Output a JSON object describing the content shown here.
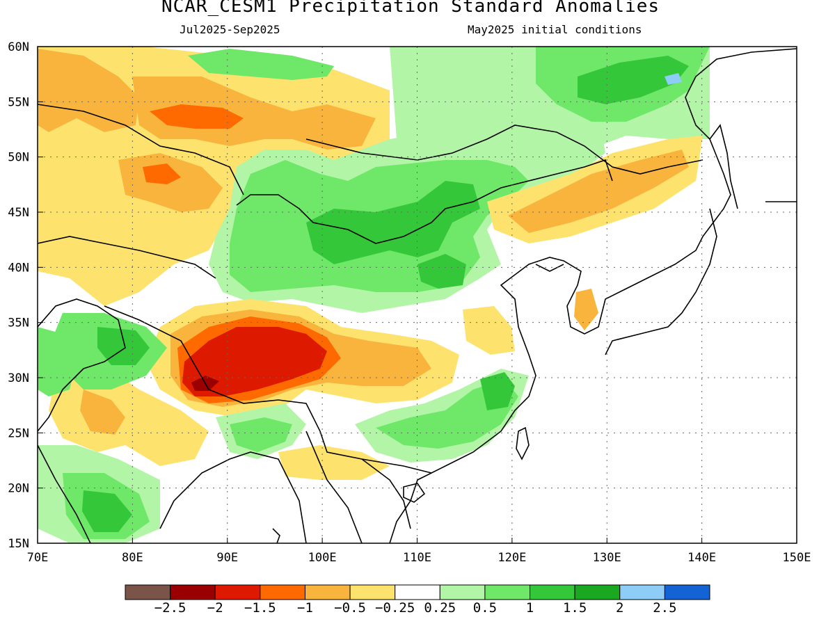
{
  "title": "NCAR_CESM1 Precipitation Standard Anomalies",
  "period": "Jul2025-Sep2025",
  "initial_conditions": "May2025 initial conditions",
  "axes": {
    "lat_labels": [
      "15N",
      "20N",
      "25N",
      "30N",
      "35N",
      "40N",
      "45N",
      "50N",
      "55N",
      "60N"
    ],
    "lat_values": [
      15,
      20,
      25,
      30,
      35,
      40,
      45,
      50,
      55,
      60
    ],
    "lon_labels": [
      "70E",
      "80E",
      "90E",
      "100E",
      "110E",
      "120E",
      "130E",
      "140E",
      "150E"
    ],
    "lon_values": [
      70,
      80,
      90,
      100,
      110,
      120,
      130,
      140,
      150
    ],
    "lon_range": [
      70,
      150
    ],
    "lat_range": [
      15,
      60
    ],
    "grid": "dotted"
  },
  "colorbar": {
    "labels": [
      "−2.5",
      "−2",
      "−1.5",
      "−1",
      "−0.5",
      "−0.25",
      "0.25",
      "0.5",
      "1",
      "1.5",
      "2",
      "2.5"
    ],
    "colors": [
      "#7b5449",
      "#9b0000",
      "#dd1a00",
      "#ff6a00",
      "#f8b43c",
      "#fde36e",
      "#ffffff",
      "#b3f5a7",
      "#6fe869",
      "#35c73a",
      "#1aa821",
      "#8ecdf7",
      "#1463d4"
    ]
  },
  "chart_data": {
    "type": "heatmap",
    "variable": "Precipitation Standard Anomalies",
    "anomaly_regions": [
      {
        "lon": 90,
        "lat": 32,
        "value": -2.0
      },
      {
        "lon": 87,
        "lat": 29.5,
        "value": -2.5
      },
      {
        "lon": 106,
        "lat": 31,
        "value": -1.5
      },
      {
        "lon": 88,
        "lat": 54,
        "value": -1.5
      },
      {
        "lon": 83,
        "lat": 48,
        "value": -1.5
      },
      {
        "lon": 71,
        "lat": 56,
        "value": -1.5
      },
      {
        "lon": 97,
        "lat": 42,
        "value": 1.5
      },
      {
        "lon": 107,
        "lat": 40,
        "value": 1.5
      },
      {
        "lon": 79,
        "lat": 18,
        "value": 1.5
      },
      {
        "lon": 120,
        "lat": 29,
        "value": 1.5
      },
      {
        "lon": 135,
        "lat": 56,
        "value": 2.0
      },
      {
        "lon": 127,
        "lat": 34,
        "value": -1.0
      },
      {
        "lon": 126,
        "lat": 45,
        "value": -1.0
      },
      {
        "lon": 74,
        "lat": 26,
        "value": -0.5
      }
    ]
  }
}
